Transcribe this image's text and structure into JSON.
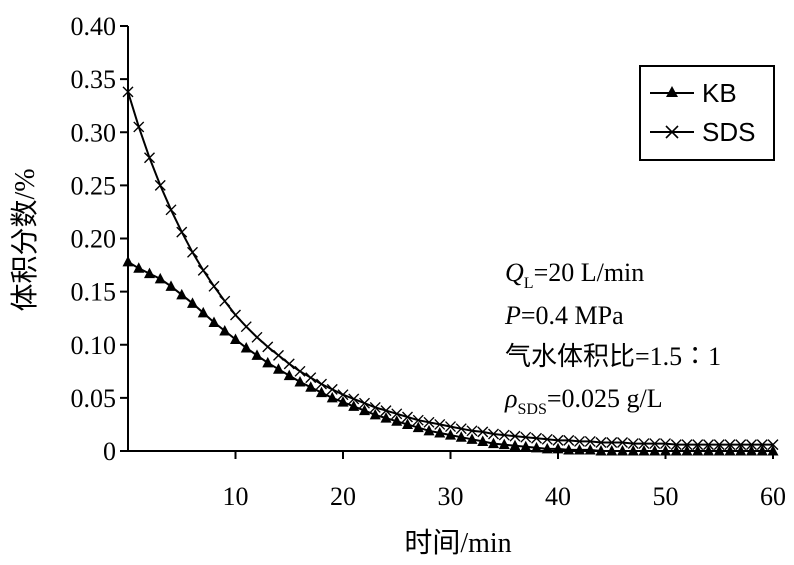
{
  "chart_data": {
    "type": "line",
    "xlabel": "时间/min",
    "ylabel": "体积分数/%",
    "xlim": [
      0,
      60
    ],
    "ylim": [
      0,
      0.4
    ],
    "x_ticks": [
      "10",
      "20",
      "30",
      "40",
      "50",
      "60"
    ],
    "y_ticks": [
      "0",
      "0.05",
      "0.10",
      "0.15",
      "0.20",
      "0.25",
      "0.30",
      "0.35",
      "0.40"
    ],
    "grid": false,
    "legend_position": "top-right",
    "series": [
      {
        "name": "KB",
        "marker": "triangle",
        "x": [
          0,
          1,
          2,
          3,
          4,
          5,
          6,
          7,
          8,
          9,
          10,
          11,
          12,
          13,
          14,
          15,
          16,
          17,
          18,
          19,
          20,
          21,
          22,
          23,
          24,
          25,
          26,
          27,
          28,
          29,
          30,
          31,
          32,
          33,
          34,
          35,
          36,
          37,
          38,
          39,
          40,
          41,
          42,
          43,
          44,
          45,
          46,
          47,
          48,
          49,
          50,
          51,
          52,
          53,
          54,
          55,
          56,
          57,
          58,
          59,
          60
        ],
        "values": [
          0.178,
          0.172,
          0.167,
          0.162,
          0.155,
          0.147,
          0.139,
          0.13,
          0.121,
          0.113,
          0.105,
          0.097,
          0.09,
          0.083,
          0.077,
          0.071,
          0.065,
          0.06,
          0.055,
          0.05,
          0.046,
          0.042,
          0.038,
          0.034,
          0.031,
          0.028,
          0.025,
          0.022,
          0.019,
          0.017,
          0.015,
          0.013,
          0.011,
          0.009,
          0.007,
          0.006,
          0.005,
          0.004,
          0.003,
          0.002,
          0.002,
          0.001,
          0.001,
          0.001,
          0.0,
          0.0,
          0.0,
          0.0,
          0.0,
          0.0,
          0.0,
          0.0,
          0.0,
          0.0,
          0.0,
          0.0,
          0.0,
          0.0,
          0.0,
          0.0,
          0.0
        ]
      },
      {
        "name": "SDS",
        "marker": "x",
        "x": [
          0,
          1,
          2,
          3,
          4,
          5,
          6,
          7,
          8,
          9,
          10,
          11,
          12,
          13,
          14,
          15,
          16,
          17,
          18,
          19,
          20,
          21,
          22,
          23,
          24,
          25,
          26,
          27,
          28,
          29,
          30,
          31,
          32,
          33,
          34,
          35,
          36,
          37,
          38,
          39,
          40,
          41,
          42,
          43,
          44,
          45,
          46,
          47,
          48,
          49,
          50,
          51,
          52,
          53,
          54,
          55,
          56,
          57,
          58,
          59,
          60
        ],
        "values": [
          0.338,
          0.305,
          0.276,
          0.25,
          0.227,
          0.206,
          0.187,
          0.17,
          0.155,
          0.141,
          0.128,
          0.117,
          0.107,
          0.098,
          0.09,
          0.082,
          0.075,
          0.069,
          0.063,
          0.058,
          0.053,
          0.049,
          0.045,
          0.041,
          0.038,
          0.035,
          0.032,
          0.029,
          0.027,
          0.025,
          0.023,
          0.021,
          0.019,
          0.018,
          0.016,
          0.015,
          0.014,
          0.013,
          0.012,
          0.011,
          0.01,
          0.01,
          0.009,
          0.009,
          0.008,
          0.008,
          0.008,
          0.007,
          0.007,
          0.007,
          0.007,
          0.006,
          0.006,
          0.006,
          0.006,
          0.006,
          0.006,
          0.006,
          0.006,
          0.006,
          0.006
        ]
      }
    ],
    "annotation": {
      "q_symbol": "Q",
      "q_sub": "L",
      "q_value": "=20 L/min",
      "p_symbol": "P",
      "p_value": "=0.4 MPa",
      "ratio_line": "气水体积比=1.5∶1",
      "rho_symbol": "ρ",
      "rho_sub": "SDS",
      "rho_value": "=0.025 g/L"
    }
  }
}
